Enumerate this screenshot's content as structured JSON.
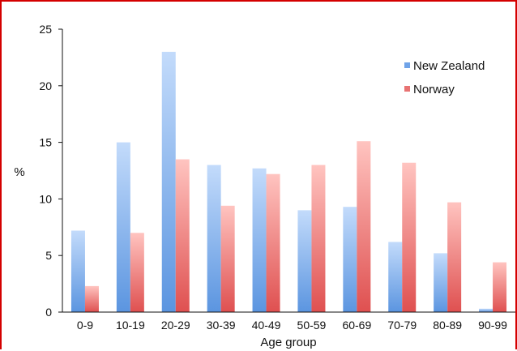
{
  "chart_data": {
    "type": "bar",
    "categories": [
      "0-9",
      "10-19",
      "20-29",
      "30-39",
      "40-49",
      "50-59",
      "60-69",
      "70-79",
      "80-89",
      "90-99"
    ],
    "series": [
      {
        "name": "New Zealand",
        "values": [
          7.2,
          15.0,
          23.0,
          13.0,
          12.7,
          9.0,
          9.3,
          6.2,
          5.2,
          0.3
        ],
        "color": "#6fa3e8"
      },
      {
        "name": "Norway",
        "values": [
          2.3,
          7.0,
          13.5,
          9.4,
          12.2,
          13.0,
          15.1,
          13.2,
          9.7,
          4.4
        ],
        "color": "#e87373"
      }
    ],
    "xlabel": "Age group",
    "ylabel": "%",
    "ylim": [
      0,
      25
    ],
    "yticks": [
      "0",
      "5",
      "10",
      "15",
      "20",
      "25"
    ],
    "legend_position": "top-right",
    "grid": false
  }
}
